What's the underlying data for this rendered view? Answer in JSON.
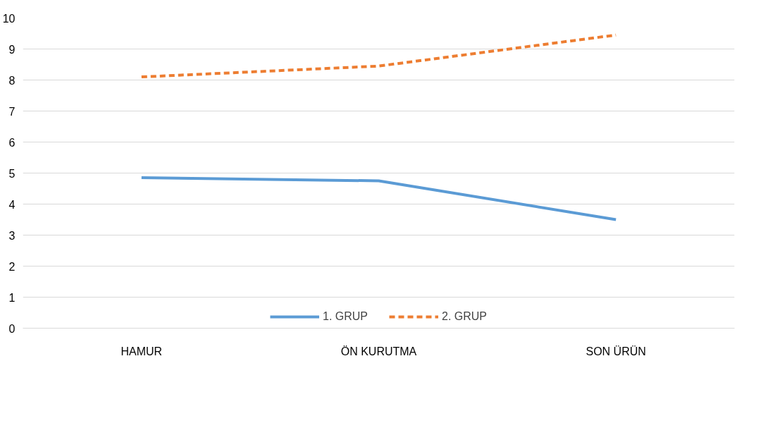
{
  "chart_data": {
    "type": "line",
    "categories": [
      "HAMUR",
      "ÖN KURUTMA",
      "SON ÜRÜN"
    ],
    "series": [
      {
        "name": "1. GRUP",
        "color": "#5b9bd5",
        "values": [
          4.85,
          4.75,
          3.5
        ],
        "line_style": "solid"
      },
      {
        "name": "2. GRUP",
        "color": "#ed7d31",
        "values": [
          8.1,
          8.45,
          9.45
        ],
        "line_style": "dashed"
      }
    ],
    "ylim": [
      0,
      10
    ],
    "yticks": [
      0,
      1,
      2,
      3,
      4,
      5,
      6,
      7,
      8,
      9,
      10
    ],
    "grid": "y",
    "legend": "bottom",
    "marker": "none"
  }
}
